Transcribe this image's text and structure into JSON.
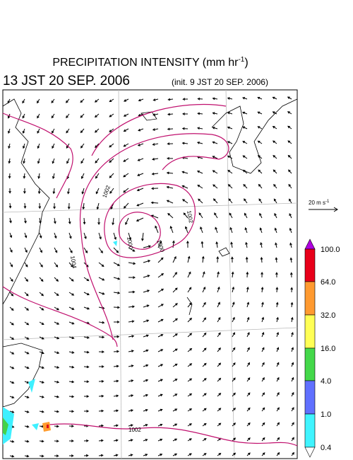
{
  "header": {
    "title": "PRECIPITATION INTENSITY (mm hr",
    "title_exponent": "-1",
    "title_close": ")",
    "valid_time": "13 JST 20 SEP. 2006",
    "init_time": "(init. 9 JST 20 SEP. 2006)"
  },
  "wind_scale": {
    "label": "20 m s",
    "exponent": "-1"
  },
  "colorbar": {
    "labels": [
      "100.0",
      "64.0",
      "32.0",
      "16.0",
      "4.0",
      "1.0",
      "0.4"
    ]
  },
  "contours": {
    "labels": [
      "1002",
      "1000",
      "1002",
      "1004",
      "1000",
      "1002"
    ]
  }
}
